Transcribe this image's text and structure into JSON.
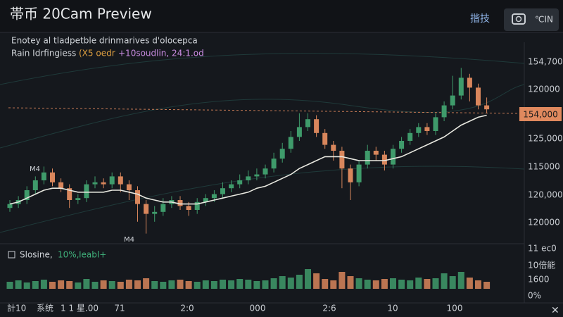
{
  "header": {
    "title": "帯币 20Cam Preview",
    "action": "揩技",
    "button": "℃IN"
  },
  "legend": {
    "line1": "Enotey al tladpetble drinmarives d'olocepca",
    "line2": "Rain Idrfingiess",
    "line3": "(X5 oedr",
    "line4": "+10soudlin, 24:1.od"
  },
  "price_labels": [
    "154,700",
    "120000",
    "125,000",
    "115000",
    "120,000",
    "120000",
    "11 ес0"
  ],
  "price_tag": "154,000",
  "annotations": [
    "M4",
    "M4"
  ],
  "volume_legend": {
    "label": "Slosine,",
    "pct": "10%,",
    "tail": "Ieabl+"
  },
  "volume_labels": [
    "10倍能",
    "1600",
    "0%"
  ],
  "footer": {
    "left": "計10",
    "mid": "系统",
    "date": "1 1 星.00",
    "times": [
      "71",
      "2:0",
      "000",
      "2:6",
      "10",
      "100"
    ]
  },
  "chart_data": [
    {
      "type": "candlestick",
      "ylim": [
        0,
        100
      ],
      "up_color": "#3f9b6b",
      "down_color": "#d8865c",
      "open": [
        16,
        18,
        20,
        25,
        30,
        34,
        29,
        26,
        20,
        21,
        28,
        29,
        28,
        32,
        28,
        25,
        18,
        13,
        14,
        18,
        20,
        17,
        15,
        19,
        21,
        23,
        26,
        28,
        30,
        32,
        33,
        36,
        41,
        46,
        52,
        57,
        61,
        54,
        48,
        45,
        36,
        29,
        38,
        45,
        43,
        38,
        46,
        50,
        54,
        57,
        55,
        62,
        68,
        73,
        82,
        77,
        68
      ],
      "close": [
        18,
        20,
        25,
        30,
        34,
        29,
        26,
        20,
        21,
        28,
        29,
        28,
        32,
        28,
        25,
        18,
        13,
        14,
        18,
        20,
        17,
        15,
        19,
        21,
        23,
        26,
        28,
        30,
        32,
        33,
        36,
        41,
        46,
        52,
        57,
        61,
        54,
        48,
        45,
        36,
        29,
        38,
        45,
        43,
        38,
        46,
        50,
        54,
        57,
        55,
        62,
        68,
        73,
        82,
        77,
        68,
        66
      ],
      "high": [
        20,
        22,
        27,
        32,
        37,
        36,
        31,
        28,
        23,
        30,
        32,
        31,
        34,
        34,
        30,
        27,
        20,
        17,
        21,
        22,
        22,
        19,
        21,
        23,
        25,
        29,
        30,
        33,
        35,
        36,
        38,
        44,
        49,
        55,
        64,
        64,
        63,
        56,
        50,
        47,
        38,
        40,
        48,
        47,
        45,
        48,
        52,
        56,
        59,
        59,
        64,
        70,
        83,
        87,
        84,
        79,
        72
      ],
      "low": [
        14,
        16,
        18,
        23,
        28,
        27,
        24,
        16,
        18,
        19,
        26,
        26,
        26,
        24,
        20,
        9,
        3,
        9,
        12,
        16,
        15,
        12,
        13,
        17,
        19,
        21,
        24,
        26,
        28,
        30,
        31,
        34,
        39,
        44,
        50,
        55,
        52,
        46,
        40,
        26,
        20,
        27,
        36,
        40,
        35,
        36,
        44,
        48,
        52,
        53,
        53,
        60,
        66,
        71,
        70,
        66,
        64
      ],
      "series": [
        {
          "color": "#e8e8e0",
          "values": [
            18,
            19,
            21,
            23,
            25,
            26,
            26,
            25,
            24,
            24,
            24,
            24,
            25,
            25,
            24,
            23,
            21,
            20,
            19,
            19,
            18,
            18,
            18,
            19,
            20,
            21,
            22,
            23,
            24,
            26,
            27,
            29,
            31,
            33,
            36,
            38,
            40,
            42,
            42,
            42,
            41,
            40,
            40,
            40,
            40,
            41,
            42,
            44,
            46,
            48,
            50,
            52,
            55,
            58,
            60,
            62,
            63
          ]
        }
      ]
    },
    {
      "type": "bar",
      "ylim": [
        0,
        40
      ],
      "values": [
        10,
        12,
        9,
        11,
        13,
        10,
        12,
        11,
        9,
        14,
        10,
        12,
        11,
        10,
        13,
        12,
        15,
        11,
        10,
        12,
        13,
        11,
        10,
        12,
        11,
        13,
        12,
        14,
        13,
        11,
        12,
        15,
        18,
        16,
        20,
        28,
        22,
        14,
        12,
        24,
        18,
        15,
        13,
        12,
        14,
        15,
        13,
        12,
        16,
        14,
        15,
        22,
        18,
        24,
        16,
        12,
        10
      ]
    }
  ]
}
